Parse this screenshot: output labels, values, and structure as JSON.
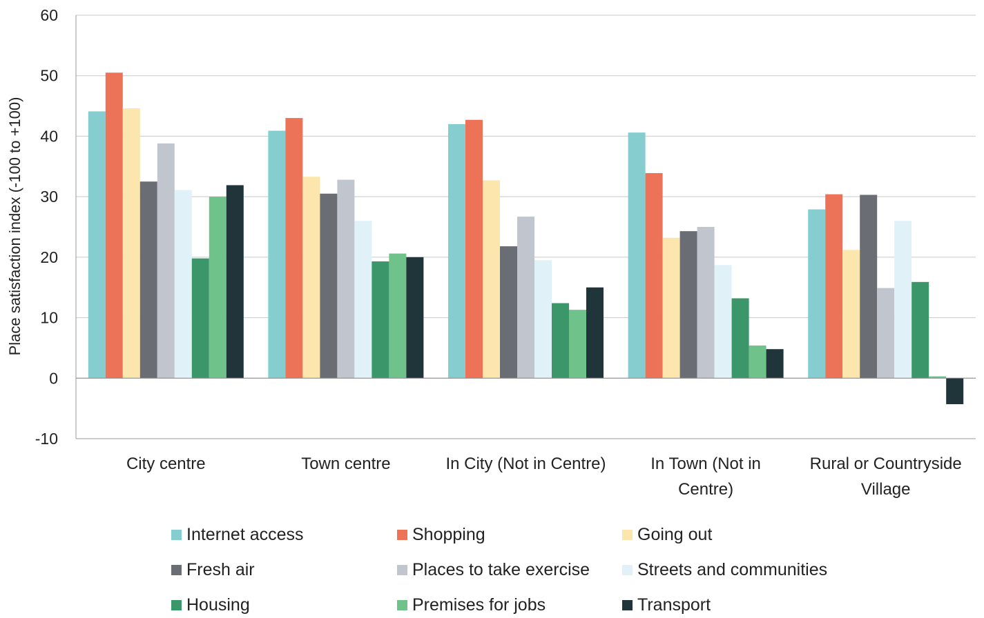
{
  "chart_data": {
    "type": "bar",
    "ylabel": "Place satisfaction index (-100 to +100)",
    "ylim": [
      -10,
      60
    ],
    "yticks": [
      60,
      50,
      40,
      30,
      20,
      10,
      0,
      -10
    ],
    "grid": true,
    "legend_position": "bottom",
    "categories": [
      [
        "City centre"
      ],
      [
        "Town centre"
      ],
      [
        "In City (Not in Centre)"
      ],
      [
        "In Town (Not in",
        "Centre)"
      ],
      [
        "Rural or Countryside",
        "Village"
      ]
    ],
    "series": [
      {
        "name": "Internet access",
        "color": "#86CDD0",
        "values": [
          44.1,
          40.9,
          42.0,
          40.6,
          27.9
        ]
      },
      {
        "name": "Shopping",
        "color": "#EC7258",
        "values": [
          50.5,
          43.0,
          42.7,
          33.9,
          30.4
        ]
      },
      {
        "name": "Going out",
        "color": "#FCE6AD",
        "values": [
          44.6,
          33.3,
          32.7,
          23.2,
          21.2
        ]
      },
      {
        "name": "Fresh air",
        "color": "#6A6D73",
        "values": [
          32.5,
          30.5,
          21.8,
          24.3,
          30.3
        ]
      },
      {
        "name": "Places to take exercise",
        "color": "#C1C5CE",
        "values": [
          38.8,
          32.8,
          26.7,
          25.0,
          14.9
        ]
      },
      {
        "name": "Streets and communities",
        "color": "#E1F1F8",
        "values": [
          31.1,
          26.0,
          19.5,
          18.7,
          26.0
        ]
      },
      {
        "name": "Housing",
        "color": "#3B9669",
        "values": [
          19.8,
          19.3,
          12.4,
          13.2,
          15.9
        ]
      },
      {
        "name": "Premises for jobs",
        "color": "#6FC38A",
        "values": [
          30.0,
          20.6,
          11.3,
          5.4,
          0.3
        ]
      },
      {
        "name": "Transport",
        "color": "#20353A",
        "values": [
          31.9,
          20.0,
          15.0,
          4.8,
          -4.3
        ]
      }
    ]
  }
}
